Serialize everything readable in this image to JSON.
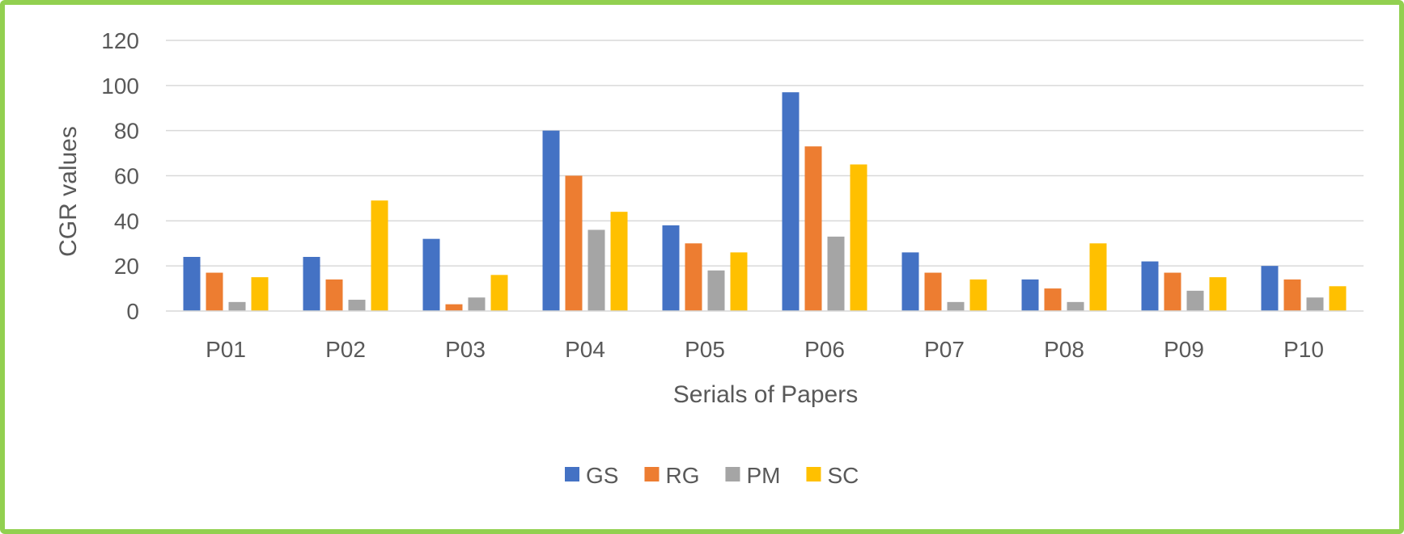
{
  "chart_data": {
    "type": "bar",
    "xlabel": "Serials of Papers",
    "ylabel": "CGR values",
    "ylim": [
      0,
      120
    ],
    "yticks": [
      0,
      20,
      40,
      60,
      80,
      100,
      120
    ],
    "grid": true,
    "legend_position": "bottom",
    "categories": [
      "P01",
      "P02",
      "P03",
      "P04",
      "P05",
      "P06",
      "P07",
      "P08",
      "P09",
      "P10"
    ],
    "series": [
      {
        "name": "GS",
        "color": "#4472c4",
        "values": [
          24,
          24,
          32,
          80,
          38,
          97,
          26,
          14,
          22,
          20
        ]
      },
      {
        "name": "RG",
        "color": "#ed7d31",
        "values": [
          17,
          14,
          3,
          60,
          30,
          73,
          17,
          10,
          17,
          14
        ]
      },
      {
        "name": "PM",
        "color": "#a5a5a5",
        "values": [
          4,
          5,
          6,
          36,
          18,
          33,
          4,
          4,
          9,
          6
        ]
      },
      {
        "name": "SC",
        "color": "#ffc000",
        "values": [
          15,
          49,
          16,
          44,
          26,
          65,
          14,
          30,
          15,
          11
        ]
      }
    ]
  }
}
